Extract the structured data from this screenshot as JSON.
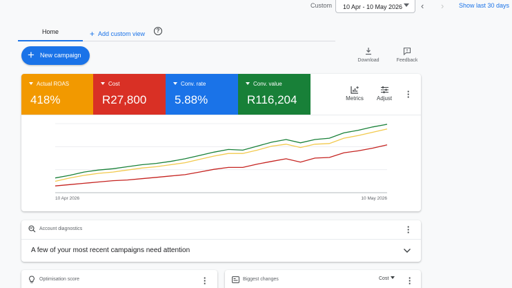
{
  "date_bar": {
    "custom_label": "Custom",
    "date_range": "10 Apr - 10 May 2026",
    "show_last": "Show last 30 days",
    "prev_icon": "chevron-left-icon",
    "next_icon": "chevron-right-icon"
  },
  "tabs": [
    {
      "label": "Home",
      "active": true
    },
    {
      "label": "Add custom view",
      "active": false
    }
  ],
  "new_campaign": "New campaign",
  "toolbar": {
    "download": "Download",
    "feedback": "Feedback"
  },
  "metrics": [
    {
      "label": "Actual ROAS",
      "value": "418%",
      "color": "#f29900"
    },
    {
      "label": "Cost",
      "value": "R27,800",
      "color": "#d93025"
    },
    {
      "label": "Conv. rate",
      "value": "5.88%",
      "color": "#1a73e8"
    },
    {
      "label": "Conv. value",
      "value": "R116,204",
      "color": "#188038"
    }
  ],
  "metric_tools": {
    "metrics": "Metrics",
    "adjust": "Adjust"
  },
  "chart_data": {
    "type": "line",
    "x_start_label": "10 Apr 2026",
    "x_end_label": "10 May 2026",
    "grid": true,
    "series": [
      {
        "color": "#188038",
        "values": [
          18,
          22,
          27,
          30,
          32,
          35,
          38,
          40,
          43,
          47,
          52,
          57,
          61,
          60,
          66,
          72,
          76,
          71,
          76,
          78,
          86,
          90,
          95,
          99
        ]
      },
      {
        "color": "#f2c94c",
        "values": [
          13,
          18,
          22,
          25,
          27,
          30,
          33,
          35,
          38,
          41,
          46,
          51,
          55,
          55,
          60,
          66,
          69,
          64,
          69,
          70,
          78,
          82,
          87,
          92
        ]
      },
      {
        "color": "#c5221f",
        "values": [
          6,
          8,
          10,
          12,
          14,
          15,
          17,
          19,
          21,
          23,
          27,
          31,
          34,
          34,
          39,
          43,
          47,
          42,
          48,
          49,
          56,
          59,
          63,
          68
        ]
      }
    ]
  },
  "diagnostics": {
    "title": "Account diagnostics",
    "message": "A few of your most recent campaigns need attention"
  },
  "optimisation": {
    "title": "Optimisation score"
  },
  "biggest_changes": {
    "title": "Biggest changes",
    "selector": "Cost"
  }
}
